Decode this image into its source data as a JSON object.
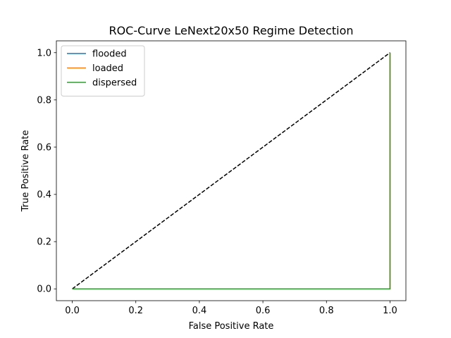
{
  "chart_data": {
    "type": "line",
    "title": "ROC-Curve LeNext20x50 Regime Detection",
    "xlabel": "False Positive Rate",
    "ylabel": "True Positive Rate",
    "xlim": [
      -0.05,
      1.05
    ],
    "ylim": [
      -0.05,
      1.05
    ],
    "xticks": [
      0.0,
      0.2,
      0.4,
      0.6,
      0.8,
      1.0
    ],
    "yticks": [
      0.0,
      0.2,
      0.4,
      0.6,
      0.8,
      1.0
    ],
    "grid": false,
    "legend_position": "top-left",
    "series": [
      {
        "name": "flooded",
        "color": "#1f77b4",
        "x": [
          0,
          1,
          1
        ],
        "y": [
          0,
          0,
          1
        ]
      },
      {
        "name": "loaded",
        "color": "#ff7f0e",
        "x": [
          0,
          1,
          1
        ],
        "y": [
          0,
          0,
          1
        ]
      },
      {
        "name": "dispersed",
        "color": "#2ca02c",
        "x": [
          0,
          1,
          1
        ],
        "y": [
          0,
          0,
          1
        ]
      }
    ],
    "reference_line": {
      "color": "#000000",
      "style": "dashed",
      "x": [
        0,
        1
      ],
      "y": [
        0,
        1
      ]
    }
  }
}
